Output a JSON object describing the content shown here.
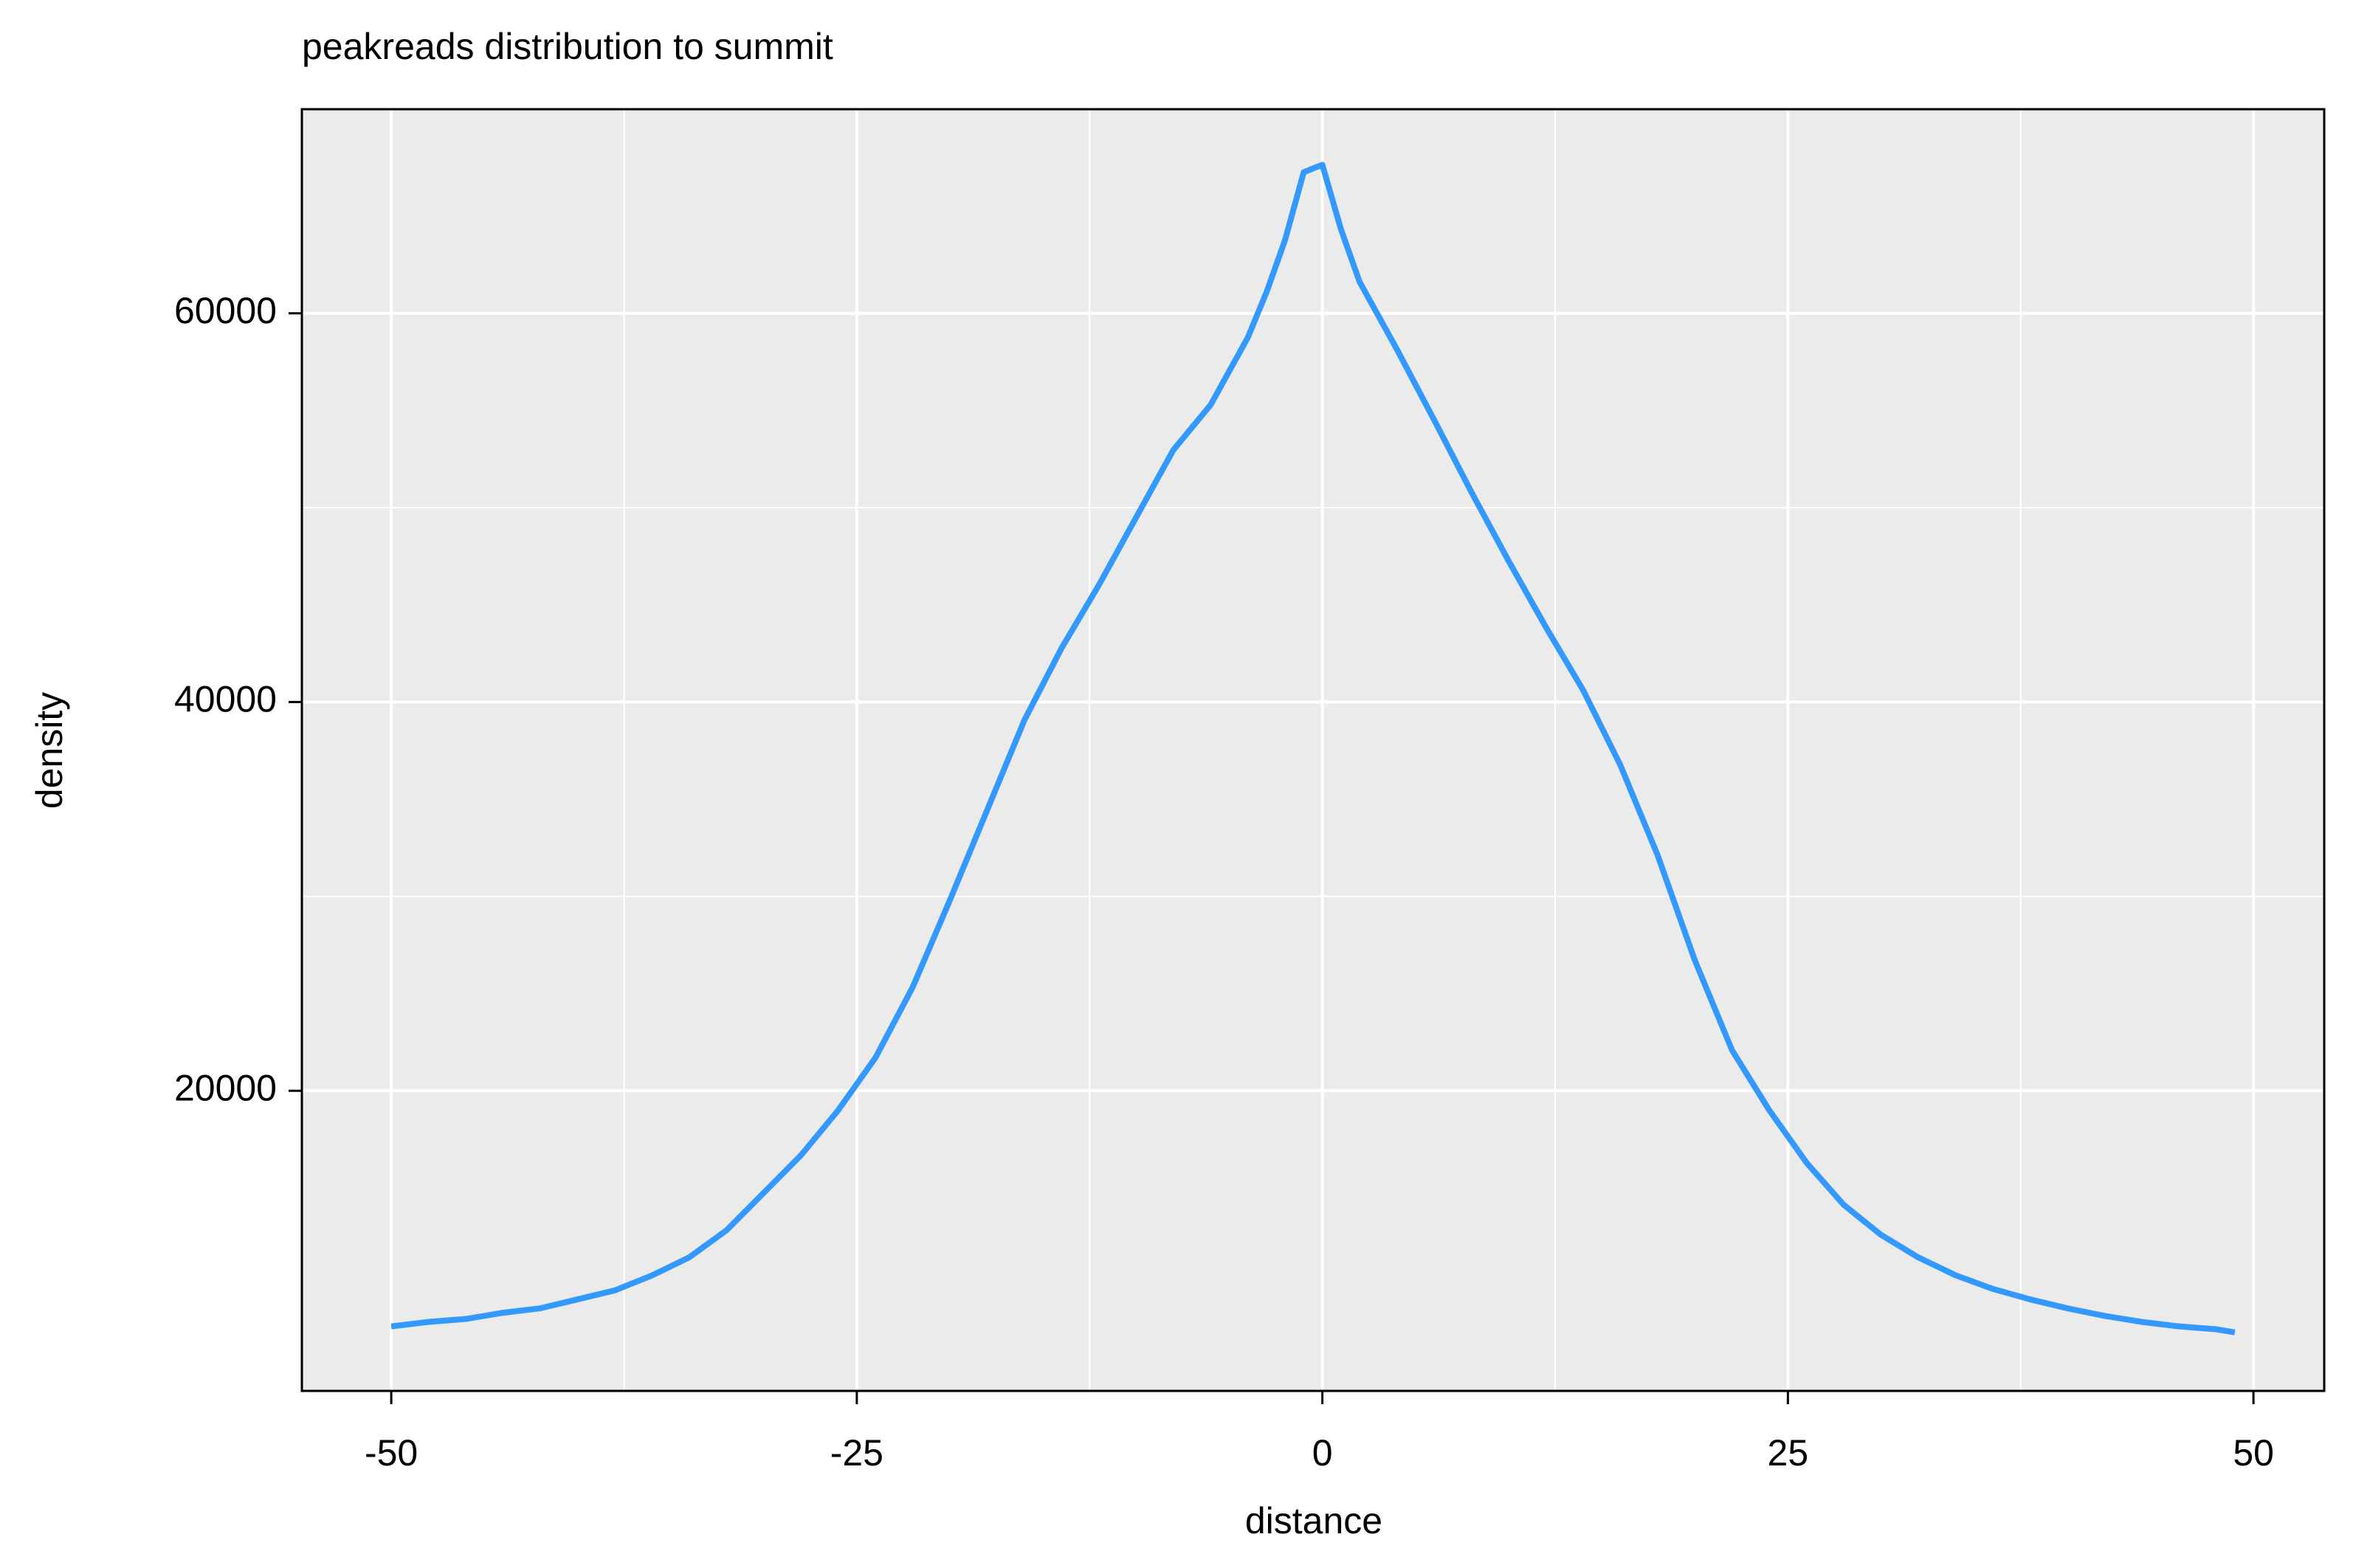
{
  "chart_data": {
    "type": "line",
    "title": "peakreads distribution to summit",
    "x_label": "distance",
    "y_label": "density",
    "x": [
      -50,
      -48,
      -46,
      -44,
      -42,
      -40,
      -38,
      -36,
      -34,
      -32,
      -30,
      -28,
      -26,
      -24,
      -22,
      -20,
      -18,
      -16,
      -14,
      -12,
      -10,
      -8,
      -6,
      -4,
      -3,
      -2,
      -1,
      0,
      1,
      2,
      4,
      6,
      8,
      10,
      12,
      14,
      16,
      18,
      20,
      22,
      24,
      26,
      28,
      30,
      32,
      34,
      36,
      38,
      40,
      42,
      44,
      46,
      48,
      49
    ],
    "series": [
      {
        "name": "density",
        "color": "#3399ff",
        "values": [
          7880,
          8110,
          8260,
          8580,
          8810,
          9270,
          9730,
          10500,
          11430,
          12820,
          14750,
          16680,
          19000,
          21700,
          25330,
          29810,
          34440,
          39070,
          42780,
          46020,
          49500,
          52970,
          55290,
          58760,
          61080,
          63780,
          67260,
          67640,
          64320,
          61620,
          58150,
          54520,
          50810,
          47260,
          43860,
          40620,
          36760,
          32130,
          26720,
          22090,
          19000,
          16300,
          14130,
          12590,
          11430,
          10510,
          9810,
          9270,
          8810,
          8420,
          8110,
          7880,
          7730,
          7570
        ]
      }
    ],
    "xlim": [
      -54.8,
      53.8
    ],
    "ylim": [
      4560,
      70500
    ],
    "xticks": [
      -50,
      -25,
      0,
      25,
      50
    ],
    "yticks": [
      20000,
      40000,
      60000
    ],
    "grid": true
  }
}
